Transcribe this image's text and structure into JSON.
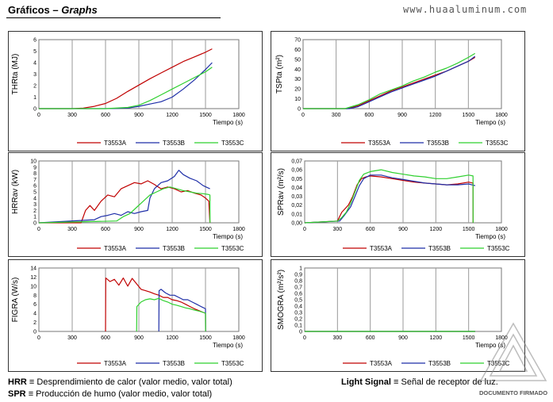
{
  "header": {
    "title_es": "Gráficos",
    "title_sep": " – ",
    "title_en": "Graphs",
    "url": "www.huaaluminum.com"
  },
  "colors": {
    "T3553A": "#c00000",
    "T3553B": "#1f2fa8",
    "T3553C": "#2fd02f"
  },
  "chart_data": [
    {
      "id": "thr",
      "type": "line",
      "ylabel": "THRta (MJ)",
      "xlabel": "Tiempo (s)",
      "xlim": [
        0,
        1800
      ],
      "xticks": [
        0,
        300,
        600,
        900,
        1200,
        1500,
        1800
      ],
      "ylim": [
        0,
        6
      ],
      "yticks": [
        0,
        1,
        2,
        3,
        4,
        5,
        6
      ],
      "grid": true,
      "legend": "bottom",
      "series": [
        {
          "name": "T3553A",
          "x": [
            0,
            300,
            400,
            500,
            600,
            700,
            800,
            900,
            1000,
            1100,
            1200,
            1300,
            1400,
            1500,
            1560
          ],
          "y": [
            0,
            0,
            0.05,
            0.2,
            0.45,
            0.9,
            1.5,
            2.05,
            2.6,
            3.1,
            3.6,
            4.1,
            4.5,
            4.9,
            5.2
          ]
        },
        {
          "name": "T3553B",
          "x": [
            0,
            600,
            800,
            900,
            1000,
            1100,
            1200,
            1300,
            1400,
            1500,
            1560
          ],
          "y": [
            0,
            0,
            0.05,
            0.2,
            0.4,
            0.6,
            1.0,
            1.7,
            2.5,
            3.4,
            4.0
          ]
        },
        {
          "name": "T3553C",
          "x": [
            0,
            600,
            800,
            900,
            1000,
            1100,
            1200,
            1300,
            1400,
            1500,
            1560
          ],
          "y": [
            0,
            0,
            0.1,
            0.3,
            0.7,
            1.2,
            1.7,
            2.2,
            2.7,
            3.2,
            3.6
          ]
        }
      ]
    },
    {
      "id": "tsp",
      "type": "line",
      "ylabel": "TSPta (m²)",
      "xlabel": "Tiempo (s)",
      "xlim": [
        0,
        1800
      ],
      "xticks": [
        0,
        300,
        600,
        900,
        1200,
        1500,
        1800
      ],
      "ylim": [
        0,
        70
      ],
      "yticks": [
        0,
        10,
        20,
        30,
        40,
        50,
        60,
        70
      ],
      "grid": true,
      "legend": "bottom",
      "series": [
        {
          "name": "T3553A",
          "x": [
            0,
            400,
            500,
            600,
            700,
            800,
            900,
            1000,
            1100,
            1200,
            1300,
            1400,
            1500,
            1560
          ],
          "y": [
            0,
            0,
            3,
            8,
            13,
            18,
            22,
            26,
            30,
            34,
            38,
            43,
            48,
            52
          ]
        },
        {
          "name": "T3553B",
          "x": [
            0,
            420,
            500,
            600,
            700,
            800,
            900,
            1000,
            1100,
            1200,
            1300,
            1400,
            1500,
            1560
          ],
          "y": [
            0,
            0,
            2,
            7,
            12,
            17,
            21,
            25,
            29,
            33,
            38,
            43,
            48,
            53
          ]
        },
        {
          "name": "T3553C",
          "x": [
            0,
            380,
            500,
            600,
            700,
            800,
            900,
            1000,
            1100,
            1200,
            1300,
            1400,
            1500,
            1560
          ],
          "y": [
            0,
            0,
            4,
            9,
            15,
            19,
            23,
            28,
            32,
            37,
            41,
            46,
            52,
            56
          ]
        }
      ]
    },
    {
      "id": "hrr",
      "type": "line",
      "ylabel": "HRRav (kW)",
      "xlabel": "Tiempo (s)",
      "xlim": [
        0,
        1800
      ],
      "xticks": [
        0,
        300,
        600,
        900,
        1200,
        1500,
        1800
      ],
      "ylim": [
        0,
        10
      ],
      "yticks": [
        0,
        1,
        2,
        3,
        4,
        5,
        6,
        7,
        8,
        9,
        10
      ],
      "grid": true,
      "legend": "bottom",
      "series": [
        {
          "name": "T3553A",
          "x": [
            0,
            380,
            420,
            460,
            500,
            560,
            620,
            680,
            740,
            800,
            860,
            920,
            980,
            1040,
            1100,
            1160,
            1220,
            1280,
            1340,
            1400,
            1460,
            1500,
            1530,
            1540
          ],
          "y": [
            0,
            0,
            2,
            2.8,
            2,
            3.5,
            4.5,
            4.2,
            5.5,
            6,
            6.5,
            6.3,
            6.8,
            6.2,
            5.5,
            5.8,
            5.5,
            5,
            5.2,
            4.8,
            4.5,
            4,
            3.5,
            0
          ]
        },
        {
          "name": "T3553B",
          "x": [
            0,
            500,
            560,
            620,
            680,
            740,
            800,
            860,
            920,
            980,
            1000,
            1040,
            1100,
            1160,
            1220,
            1260,
            1300,
            1360,
            1420,
            1480,
            1540
          ],
          "y": [
            0,
            0.5,
            1,
            1.2,
            1.5,
            1.2,
            1.8,
            1.5,
            1.8,
            2,
            4,
            5.5,
            6.5,
            6.8,
            7.5,
            8.5,
            7.8,
            7.2,
            6.8,
            6,
            5.5
          ]
        },
        {
          "name": "T3553C",
          "x": [
            0,
            700,
            760,
            820,
            880,
            940,
            1000,
            1060,
            1120,
            1180,
            1240,
            1300,
            1360,
            1420,
            1480,
            1520,
            1540,
            1541
          ],
          "y": [
            0,
            0.3,
            1,
            1.5,
            2.5,
            3.5,
            4.5,
            5,
            5.5,
            5.8,
            5.5,
            5.2,
            5,
            4.8,
            4.7,
            4.6,
            4.5,
            0
          ]
        }
      ]
    },
    {
      "id": "spr",
      "type": "line",
      "ylabel": "SPRav (m²/s)",
      "xlabel": "Tiempo (s)",
      "xlim": [
        0,
        1800
      ],
      "xticks": [
        0,
        300,
        600,
        900,
        1200,
        1500,
        1800
      ],
      "ylim": [
        0,
        0.07
      ],
      "yticks": [
        0,
        0.01,
        0.02,
        0.03,
        0.04,
        0.05,
        0.06,
        0.07
      ],
      "ytick_labels": [
        "0,00",
        "0,01",
        "0,02",
        "0,03",
        "0,04",
        "0,05",
        "0,06",
        "0,07"
      ],
      "grid": true,
      "legend": "bottom",
      "series": [
        {
          "name": "T3553A",
          "x": [
            0,
            300,
            340,
            400,
            440,
            480,
            520,
            560,
            600,
            700,
            800,
            900,
            1000,
            1100,
            1200,
            1300,
            1400,
            1500,
            1540,
            1541
          ],
          "y": [
            0,
            0.002,
            0.012,
            0.02,
            0.03,
            0.043,
            0.05,
            0.052,
            0.053,
            0.052,
            0.05,
            0.048,
            0.046,
            0.045,
            0.044,
            0.043,
            0.044,
            0.046,
            0.045,
            0
          ]
        },
        {
          "name": "T3553B",
          "x": [
            0,
            320,
            360,
            420,
            460,
            500,
            540,
            600,
            700,
            800,
            900,
            1000,
            1100,
            1200,
            1300,
            1400,
            1500,
            1560
          ],
          "y": [
            0,
            0.002,
            0.008,
            0.018,
            0.03,
            0.042,
            0.05,
            0.054,
            0.054,
            0.051,
            0.049,
            0.047,
            0.045,
            0.044,
            0.043,
            0.043,
            0.044,
            0.042
          ]
        },
        {
          "name": "T3553C",
          "x": [
            0,
            300,
            340,
            380,
            420,
            460,
            500,
            540,
            600,
            700,
            800,
            900,
            1000,
            1100,
            1200,
            1300,
            1400,
            1500,
            1540,
            1541
          ],
          "y": [
            0,
            0.002,
            0.006,
            0.012,
            0.022,
            0.035,
            0.048,
            0.055,
            0.058,
            0.06,
            0.057,
            0.055,
            0.053,
            0.052,
            0.05,
            0.05,
            0.052,
            0.054,
            0.053,
            0
          ]
        }
      ]
    },
    {
      "id": "figra",
      "type": "line",
      "ylabel": "FIGRA (W/s)",
      "xlabel": "Tiempo (s)",
      "xlim": [
        0,
        1800
      ],
      "xticks": [
        0,
        300,
        600,
        900,
        1200,
        1500,
        1800
      ],
      "ylim": [
        0,
        14
      ],
      "yticks": [
        0,
        2,
        4,
        6,
        8,
        10,
        12,
        14
      ],
      "grid": true,
      "legend": "bottom",
      "series": [
        {
          "name": "T3553A",
          "x": [
            600,
            602,
            640,
            680,
            720,
            760,
            800,
            840,
            880,
            920,
            960,
            1000,
            1040,
            1080,
            1120,
            1160,
            1200,
            1240,
            1280,
            1320,
            1360,
            1400,
            1440,
            1480,
            1500,
            1501
          ],
          "y": [
            0,
            11.8,
            11,
            11.5,
            10.2,
            11.8,
            10,
            11.7,
            10.5,
            9.3,
            9,
            8.7,
            8.3,
            8,
            7.5,
            7.5,
            7,
            6.8,
            6.5,
            6,
            5.5,
            5,
            4.6,
            4.2,
            4,
            0
          ]
        },
        {
          "name": "T3553B",
          "x": [
            1080,
            1082,
            1100,
            1140,
            1180,
            1220,
            1260,
            1300,
            1340,
            1380,
            1420,
            1460,
            1500,
            1501
          ],
          "y": [
            0,
            9,
            9.3,
            8.5,
            8,
            8,
            7.5,
            7,
            7,
            6.5,
            6,
            5.5,
            5,
            0
          ]
        },
        {
          "name": "T3553C",
          "x": [
            880,
            882,
            920,
            960,
            1000,
            1040,
            1080,
            1120,
            1160,
            1200,
            1240,
            1280,
            1320,
            1360,
            1400,
            1440,
            1480,
            1500,
            1501
          ],
          "y": [
            0,
            5.5,
            6.5,
            7,
            7.2,
            7,
            7.3,
            6.8,
            6.5,
            6,
            5.8,
            5.5,
            5.2,
            5,
            4.7,
            4.5,
            4.2,
            4,
            0
          ]
        }
      ]
    },
    {
      "id": "smogra",
      "type": "line",
      "ylabel": "SMOGRA (m²/s²)",
      "xlabel": "Tiempo (s)",
      "xlim": [
        0,
        1800
      ],
      "xticks": [
        0,
        300,
        600,
        900,
        1200,
        1500,
        1800
      ],
      "ylim": [
        0,
        1
      ],
      "yticks": [
        0,
        0.1,
        0.2,
        0.3,
        0.4,
        0.5,
        0.6,
        0.7,
        0.8,
        0.9,
        1
      ],
      "ytick_labels": [
        "0",
        "0,1",
        "0,2",
        "0,3",
        "0,4",
        "0,5",
        "0,6",
        "0,7",
        "0,8",
        "0,9",
        "1"
      ],
      "grid": true,
      "legend": "bottom",
      "series": [
        {
          "name": "T3553A",
          "x": [
            0,
            1560
          ],
          "y": [
            0,
            0
          ]
        },
        {
          "name": "T3553B",
          "x": [
            0,
            1560
          ],
          "y": [
            0,
            0
          ]
        },
        {
          "name": "T3553C",
          "x": [
            0,
            1560
          ],
          "y": [
            0,
            0
          ]
        }
      ]
    }
  ],
  "definitions": [
    {
      "abbr": "HRR",
      "eq": "≡",
      "text": "Desprendimiento de calor (valor medio, valor total)"
    },
    {
      "abbr": "SPR",
      "eq": "≡",
      "text": "Producción de humo (valor medio, valor total)"
    },
    {
      "abbr": "Light Signal",
      "eq": "≡",
      "text": "Señal de receptor de luz."
    }
  ],
  "watermark": {
    "text": "DOCUMENTO FIRMADO"
  }
}
